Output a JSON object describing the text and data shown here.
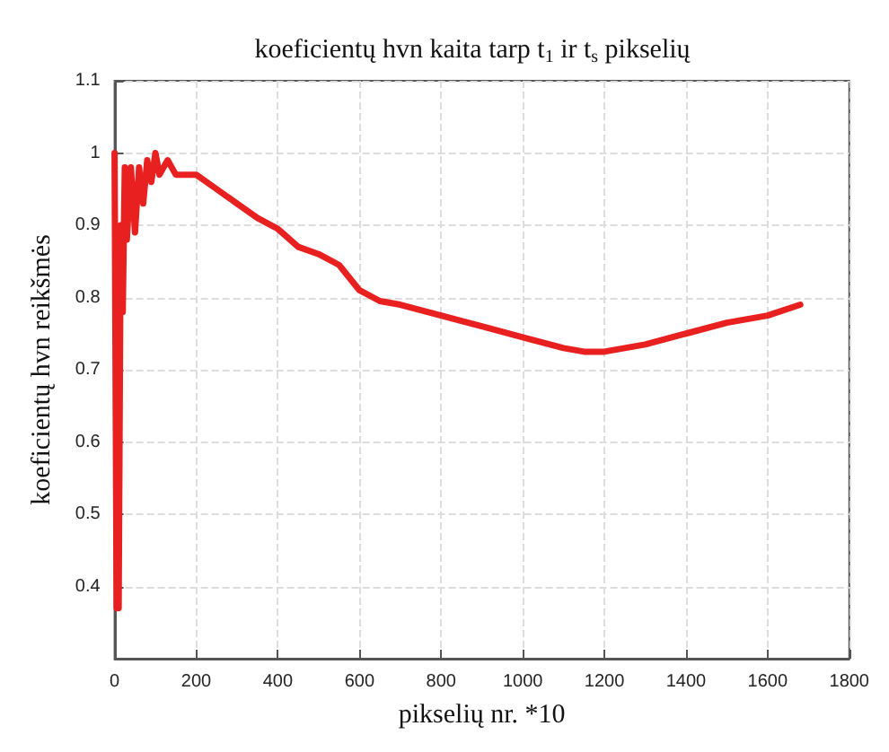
{
  "chart_data": {
    "type": "line",
    "title": "koeficientų hvn kaita tarp t$_{1}$ ir t$_{s}$ pikselių",
    "xlabel": "pikselių nr. *10",
    "ylabel": "koeficientų hvn reikšmės",
    "x": [
      0,
      5,
      10,
      15,
      20,
      25,
      30,
      40,
      50,
      60,
      70,
      80,
      90,
      100,
      110,
      130,
      150,
      200,
      250,
      300,
      350,
      400,
      450,
      500,
      550,
      600,
      650,
      700,
      800,
      900,
      1000,
      1100,
      1150,
      1200,
      1300,
      1400,
      1500,
      1600,
      1680
    ],
    "series": [
      {
        "color": "#e8201f",
        "values": [
          1.0,
          0.37,
          0.37,
          0.9,
          0.78,
          0.98,
          0.88,
          0.98,
          0.89,
          0.98,
          0.93,
          0.99,
          0.96,
          1.0,
          0.97,
          0.99,
          0.97,
          0.97,
          0.95,
          0.93,
          0.91,
          0.895,
          0.87,
          0.86,
          0.845,
          0.81,
          0.795,
          0.79,
          0.775,
          0.76,
          0.745,
          0.73,
          0.725,
          0.725,
          0.735,
          0.75,
          0.765,
          0.775,
          0.79
        ]
      }
    ],
    "xlim": [
      0,
      1800
    ],
    "xticks": [
      0,
      200,
      400,
      600,
      800,
      1000,
      1200,
      1400,
      1600,
      1800
    ],
    "ylim": [
      0.3,
      1.1
    ],
    "yticks": [
      0.4,
      0.5,
      0.6,
      0.7,
      0.8,
      0.9,
      1,
      1.1
    ],
    "grid": true,
    "marker": "none",
    "line_style": "solid"
  }
}
